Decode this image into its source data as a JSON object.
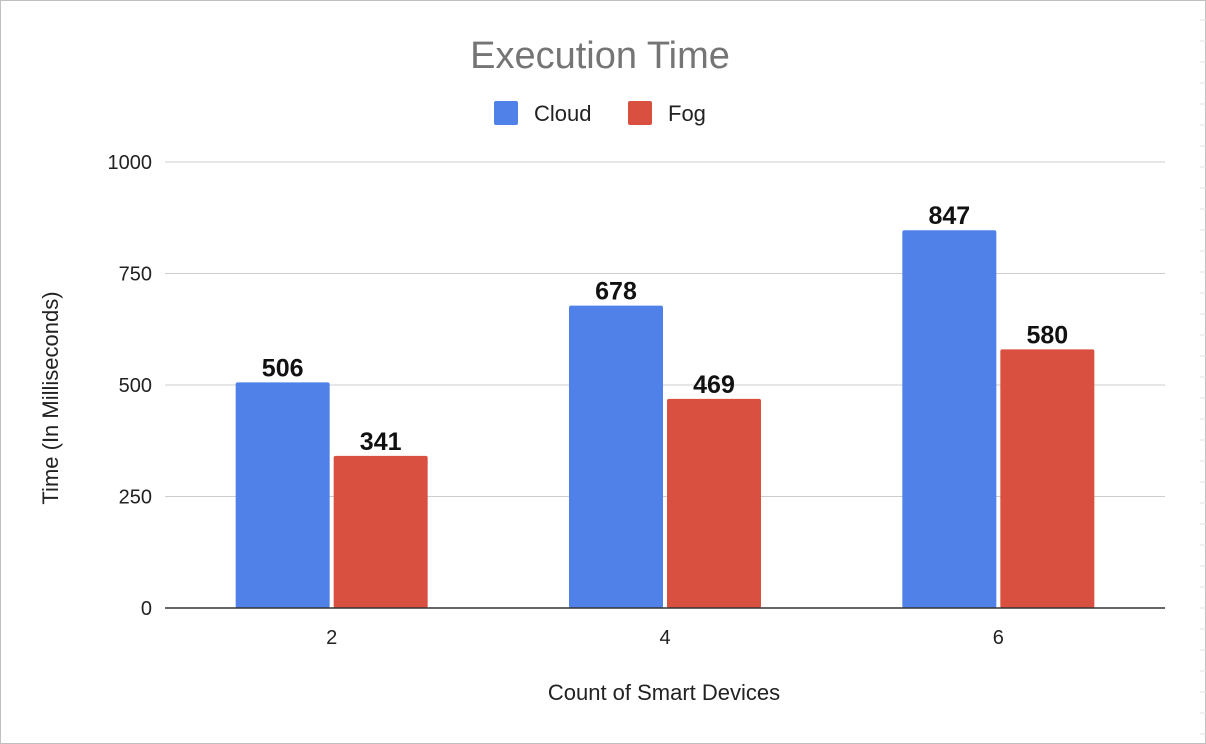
{
  "chart_data": {
    "type": "bar",
    "title": "Execution Time",
    "xlabel": "Count of Smart Devices",
    "ylabel": "Time (In Milliseconds)",
    "categories": [
      "2",
      "4",
      "6"
    ],
    "series": [
      {
        "name": "Cloud",
        "values": [
          506,
          678,
          847
        ],
        "color": "#4f81e8"
      },
      {
        "name": "Fog",
        "values": [
          341,
          469,
          580
        ],
        "color": "#d94f40"
      }
    ],
    "ylim": [
      0,
      1000
    ],
    "yticks": [
      "0",
      "250",
      "500",
      "750",
      "1000"
    ],
    "data_labels": true,
    "grid": true,
    "legend": "top-center"
  }
}
